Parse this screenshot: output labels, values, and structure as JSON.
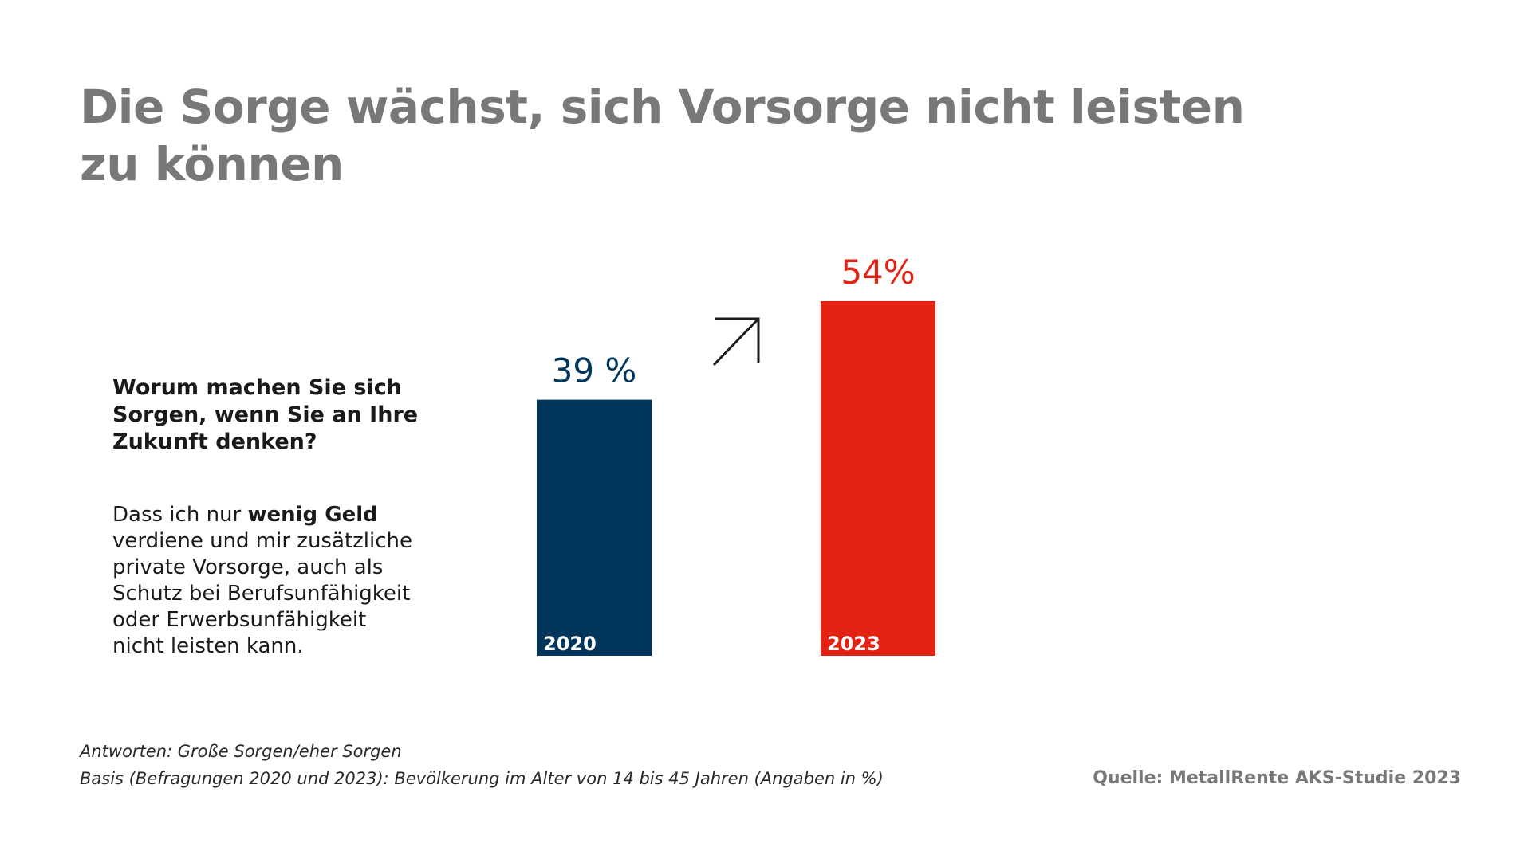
{
  "title_lines": [
    "Die Sorge wächst, sich Vorsorge nicht leisten",
    "zu können"
  ],
  "question_lines": [
    "Worum machen Sie sich",
    "Sorgen, wenn Sie an Ihre",
    "Zukunft denken?"
  ],
  "answer": {
    "line1_pre": "Dass ich nur ",
    "line1_bold": "wenig Geld",
    "lines": [
      "verdiene und mir zusätzliche",
      "private Vorsorge, auch als",
      "Schutz bei Berufsunfähigkeit",
      "oder Erwerbsunfähigkeit",
      "nicht leisten kann."
    ]
  },
  "footnotes": {
    "answers": "Antworten: Große Sorgen/eher Sorgen",
    "basis": "Basis (Befragungen 2020 und 2023): Bevölkerung im Alter von 14 bis 45 Jahren (Angaben in %)"
  },
  "source": "Quelle: MetallRente AKS-Studie 2023",
  "icon": "arrow-up-right-icon",
  "colors": {
    "title": "#7a7877",
    "bar_2020": "#00365c",
    "bar_2023": "#e32213",
    "text": "#1a1a1a"
  },
  "chart_data": {
    "type": "bar",
    "categories": [
      "2020",
      "2023"
    ],
    "values": [
      39,
      54
    ],
    "value_labels": [
      "39 %",
      "54%"
    ],
    "colors": [
      "#00365c",
      "#e32213"
    ],
    "title": "",
    "xlabel": "",
    "ylabel": "",
    "ylim": [
      0,
      54
    ],
    "unit": "%"
  }
}
